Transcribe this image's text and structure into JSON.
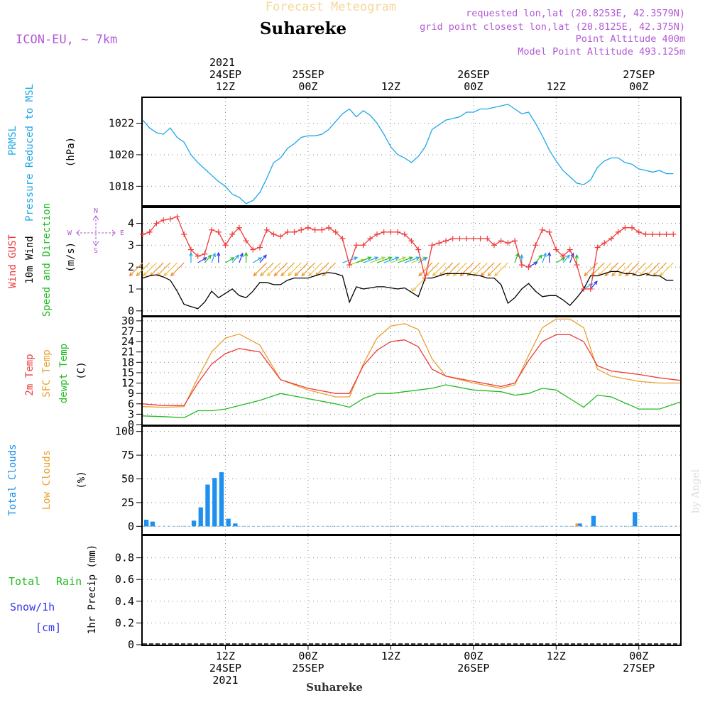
{
  "header": {
    "forecast_title": "Forecast Meteogram",
    "location": "Suhareke",
    "model": "ICON-EU, ~ 7km",
    "requested": "requested lon,lat (20.8253E, 42.3579N)",
    "grid_point": "grid point closest lon,lat (20.8125E, 42.375N)",
    "point_altitude": "Point Altitude 400m",
    "model_altitude": "Model Point Altitude 493.125m"
  },
  "time_axis": {
    "start_hour": 0,
    "end_hour": 78,
    "top_year": "2021",
    "top_ticks": [
      {
        "hour": 12,
        "lines": [
          "24SEP",
          "12Z"
        ]
      },
      {
        "hour": 24,
        "lines": [
          "25SEP",
          "00Z"
        ]
      },
      {
        "hour": 36,
        "lines": [
          "12Z"
        ]
      },
      {
        "hour": 48,
        "lines": [
          "26SEP",
          "00Z"
        ]
      },
      {
        "hour": 60,
        "lines": [
          "12Z"
        ]
      },
      {
        "hour": 72,
        "lines": [
          "27SEP",
          "00Z"
        ]
      }
    ],
    "bottom_ticks": [
      {
        "hour": 12,
        "lines": [
          "12Z",
          "24SEP",
          "2021"
        ]
      },
      {
        "hour": 24,
        "lines": [
          "00Z",
          "25SEP"
        ]
      },
      {
        "hour": 36,
        "lines": [
          "12Z"
        ]
      },
      {
        "hour": 48,
        "lines": [
          "00Z",
          "26SEP"
        ]
      },
      {
        "hour": 60,
        "lines": [
          "12Z"
        ]
      },
      {
        "hour": 72,
        "lines": [
          "00Z",
          "27SEP"
        ]
      }
    ],
    "footer_location": "Suhareke"
  },
  "colors": {
    "title_faint": "#f5d89a",
    "purple": "#b15ad6",
    "pressure": "#1ea7e8",
    "gust": "#ee3c3c",
    "wind": "#000000",
    "temp2m": "#ee3c3c",
    "sfc": "#e8a030",
    "dewpt": "#22bb22",
    "total_clouds": "#1e90ef",
    "low_clouds": "#e8a030",
    "rain": "#22bb22",
    "snow": "#3333ee",
    "grid": "#888888"
  },
  "chart_data": [
    {
      "type": "line",
      "title": "PRMSL Pressure Reduced to MSL",
      "label_lines": [
        "PRMSL",
        "Pressure Reduced to MSL"
      ],
      "ylabel": "(hPa)",
      "ylim": [
        1016.8,
        1023.6
      ],
      "yticks": [
        "1018",
        "1020",
        "1022"
      ],
      "x": [
        0,
        1,
        2,
        3,
        4,
        5,
        6,
        7,
        8,
        9,
        10,
        11,
        12,
        13,
        14,
        15,
        16,
        17,
        18,
        19,
        20,
        21,
        22,
        23,
        24,
        25,
        26,
        27,
        28,
        29,
        30,
        31,
        32,
        33,
        34,
        35,
        36,
        37,
        38,
        39,
        40,
        41,
        42,
        43,
        44,
        45,
        46,
        47,
        48,
        49,
        50,
        51,
        52,
        53,
        54,
        55,
        56,
        57,
        58,
        59,
        60,
        61,
        62,
        63,
        64,
        65,
        66,
        67,
        68,
        69,
        70,
        71,
        72,
        73,
        74,
        75,
        76,
        77
      ],
      "series": [
        {
          "name": "PRMSL",
          "values": [
            1022.2,
            1021.7,
            1021.4,
            1021.3,
            1021.7,
            1021.1,
            1020.8,
            1020.0,
            1019.5,
            1019.1,
            1018.7,
            1018.3,
            1018.0,
            1017.5,
            1017.3,
            1016.9,
            1017.1,
            1017.6,
            1018.5,
            1019.5,
            1019.8,
            1020.4,
            1020.7,
            1021.1,
            1021.2,
            1021.2,
            1021.3,
            1021.6,
            1022.1,
            1022.6,
            1022.9,
            1022.4,
            1022.8,
            1022.5,
            1022.0,
            1021.3,
            1020.5,
            1020.0,
            1019.8,
            1019.5,
            1019.9,
            1020.5,
            1021.6,
            1021.9,
            1022.2,
            1022.3,
            1022.4,
            1022.7,
            1022.7,
            1022.9,
            1022.9,
            1023.0,
            1023.1,
            1023.2,
            1022.9,
            1022.6,
            1022.7,
            1022.0,
            1021.2,
            1020.3,
            1019.6,
            1019.0,
            1018.6,
            1018.2,
            1018.1,
            1018.4,
            1019.2,
            1019.6,
            1019.8,
            1019.8,
            1019.5,
            1019.4,
            1019.1,
            1019.0,
            1018.9,
            1019.0,
            1018.8,
            1018.8
          ]
        }
      ]
    },
    {
      "type": "line",
      "title": "Wind GUST / 10m Wind Speed and Direction",
      "label_gust": "Wind GUST",
      "label_wind": "10m Wind",
      "label_dir": "Speed and Direction",
      "ylabel": "(m/s)",
      "compass": {
        "n": "N",
        "s": "S",
        "w": "W",
        "e": "E"
      },
      "ylim": [
        -0.2,
        4.7
      ],
      "yticks": [
        "0",
        "1",
        "2",
        "3",
        "4"
      ],
      "x": [
        0,
        1,
        2,
        3,
        4,
        5,
        6,
        7,
        8,
        9,
        10,
        11,
        12,
        13,
        14,
        15,
        16,
        17,
        18,
        19,
        20,
        21,
        22,
        23,
        24,
        25,
        26,
        27,
        28,
        29,
        30,
        31,
        32,
        33,
        34,
        35,
        36,
        37,
        38,
        39,
        40,
        41,
        42,
        43,
        44,
        45,
        46,
        47,
        48,
        49,
        50,
        51,
        52,
        53,
        54,
        55,
        56,
        57,
        58,
        59,
        60,
        61,
        62,
        63,
        64,
        65,
        66,
        67,
        68,
        69,
        70,
        71,
        72,
        73,
        74,
        75,
        76,
        77
      ],
      "series": [
        {
          "name": "Wind GUST",
          "values": [
            3.5,
            3.6,
            4.0,
            4.15,
            4.2,
            4.3,
            3.5,
            2.8,
            2.5,
            2.6,
            3.7,
            3.6,
            3.0,
            3.5,
            3.8,
            3.2,
            2.8,
            2.9,
            3.7,
            3.5,
            3.4,
            3.6,
            3.6,
            3.7,
            3.8,
            3.7,
            3.7,
            3.8,
            3.6,
            3.3,
            2.1,
            3.0,
            3.0,
            3.3,
            3.5,
            3.6,
            3.6,
            3.6,
            3.5,
            3.2,
            2.8,
            1.5,
            3.0,
            3.1,
            3.2,
            3.3,
            3.3,
            3.3,
            3.3,
            3.3,
            3.3,
            3.0,
            3.2,
            3.1,
            3.2,
            2.1,
            2.0,
            3.0,
            3.7,
            3.6,
            2.8,
            2.5,
            2.8,
            2.1,
            1.0,
            1.0,
            2.9,
            3.1,
            3.3,
            3.6,
            3.8,
            3.8,
            3.6,
            3.5,
            3.5,
            3.5,
            3.5,
            3.5
          ]
        },
        {
          "name": "10m Wind",
          "values": [
            1.5,
            1.6,
            1.65,
            1.55,
            1.4,
            0.9,
            0.3,
            0.2,
            0.1,
            0.4,
            0.9,
            0.6,
            0.8,
            1.0,
            0.7,
            0.6,
            0.9,
            1.3,
            1.3,
            1.2,
            1.2,
            1.4,
            1.5,
            1.5,
            1.5,
            1.6,
            1.7,
            1.75,
            1.7,
            1.6,
            0.4,
            1.1,
            1.0,
            1.05,
            1.1,
            1.1,
            1.05,
            1.0,
            1.05,
            0.85,
            0.65,
            1.5,
            1.5,
            1.6,
            1.7,
            1.7,
            1.7,
            1.7,
            1.65,
            1.6,
            1.5,
            1.5,
            1.2,
            0.35,
            0.6,
            1.0,
            1.25,
            0.9,
            0.65,
            0.7,
            0.7,
            0.5,
            0.25,
            0.6,
            1.0,
            1.6,
            1.6,
            1.7,
            1.8,
            1.8,
            1.7,
            1.7,
            1.6,
            1.7,
            1.6,
            1.6,
            1.4,
            1.4
          ]
        }
      ],
      "barb_hours": [
        0,
        1,
        2,
        3,
        4,
        5,
        6,
        7,
        8,
        9,
        10,
        11,
        12,
        13,
        14,
        15,
        16,
        17,
        18,
        19,
        20,
        21,
        22,
        23,
        24,
        25,
        26,
        27,
        28,
        29,
        30,
        31,
        32,
        33,
        34,
        35,
        36,
        37,
        38,
        39,
        40,
        41,
        42,
        43,
        44,
        45,
        46,
        47,
        48,
        49,
        50,
        51,
        52,
        53,
        54,
        55,
        56,
        57,
        58,
        59,
        60,
        61,
        62,
        63,
        64,
        65,
        66,
        67,
        68,
        69,
        70,
        71,
        72,
        73,
        74,
        75,
        76,
        77
      ]
    },
    {
      "type": "line",
      "title": "2m Temp / SFC Temp / dewpt Temp",
      "label_lines": [
        "2m Temp",
        "SFC Temp",
        "dewpt Temp"
      ],
      "ylabel": "(C)",
      "ylim": [
        0,
        31
      ],
      "yticks": [
        "0",
        "3",
        "6",
        "9",
        "12",
        "15",
        "18",
        "21",
        "24",
        "27",
        "30"
      ],
      "x": [
        0,
        3,
        6,
        8,
        10,
        12,
        14,
        17,
        20,
        24,
        28,
        30,
        32,
        34,
        36,
        38,
        40,
        42,
        44,
        48,
        52,
        54,
        56,
        58,
        60,
        62,
        64,
        66,
        68,
        72,
        75,
        78
      ],
      "series": [
        {
          "name": "2m Temp",
          "values": [
            6.0,
            5.5,
            5.5,
            12.0,
            17.5,
            20.5,
            22.0,
            21.0,
            13.0,
            10.5,
            9.0,
            9.0,
            17.0,
            21.5,
            24.0,
            24.5,
            22.5,
            16.0,
            14.0,
            12.5,
            11.0,
            12.0,
            18.5,
            24.0,
            26.0,
            26.0,
            24.0,
            17.0,
            15.5,
            14.5,
            13.5,
            12.8
          ]
        },
        {
          "name": "SFC Temp",
          "values": [
            5.2,
            5.0,
            5.2,
            13.5,
            21.0,
            25.0,
            26.2,
            23.0,
            13.0,
            10.0,
            8.0,
            8.0,
            17.5,
            25.0,
            28.5,
            29.2,
            27.5,
            19.0,
            14.0,
            12.0,
            10.5,
            11.5,
            20.0,
            28.0,
            30.5,
            30.5,
            28.0,
            16.0,
            14.0,
            12.5,
            12.0,
            12.0
          ]
        },
        {
          "name": "dewpt Temp",
          "values": [
            2.5,
            2.3,
            2.0,
            4.0,
            4.0,
            4.5,
            5.5,
            7.0,
            9.0,
            7.5,
            6.0,
            5.0,
            7.5,
            9.0,
            9.0,
            9.5,
            10.0,
            10.5,
            11.5,
            10.0,
            9.5,
            8.5,
            9.0,
            10.5,
            10.0,
            7.5,
            5.0,
            8.5,
            8.0,
            4.5,
            4.5,
            6.5
          ]
        }
      ]
    },
    {
      "type": "bar",
      "title": "Total Clouds / Low Clouds",
      "label_total": "Total Clouds",
      "label_low": "Low Clouds",
      "ylabel": "(%)",
      "ylim": [
        -8,
        105
      ],
      "yticks": [
        "0",
        "25",
        "50",
        "75",
        "100"
      ],
      "series": [
        {
          "name": "Total Clouds",
          "hours": [
            0.1,
            1,
            7,
            8,
            9,
            10,
            11,
            12,
            13,
            63,
            65,
            71
          ],
          "values": [
            7,
            5,
            6,
            20,
            44,
            51,
            57,
            8,
            3,
            3,
            11,
            15
          ]
        },
        {
          "name": "Low Clouds",
          "hours": [
            62.7
          ],
          "values": [
            3
          ]
        }
      ]
    },
    {
      "type": "line",
      "title": "1hr Precip",
      "label_total": "Total",
      "label_rain": "Rain",
      "label_snow": "Snow/1h",
      "label_cm": "[cm]",
      "ylabel": "1hr Precip (mm)",
      "ylim": [
        0,
        1.0
      ],
      "yticks": [
        "0",
        "0.2",
        "0.4",
        "0.6",
        "0.8"
      ],
      "series": [
        {
          "name": "Total Rain",
          "values": [
            0,
            0,
            0,
            0,
            0,
            0,
            0,
            0,
            0,
            0,
            0,
            0,
            0,
            0
          ]
        },
        {
          "name": "Snow/1h",
          "values": [
            0,
            0,
            0,
            0,
            0,
            0,
            0,
            0,
            0,
            0,
            0,
            0,
            0,
            0
          ]
        }
      ]
    }
  ],
  "signature": "by Angel"
}
